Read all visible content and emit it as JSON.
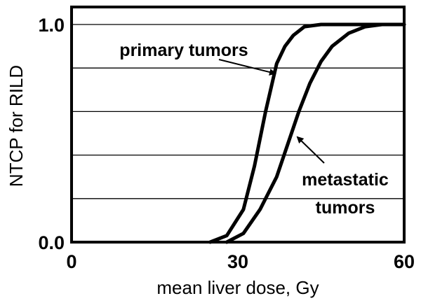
{
  "chart_data": {
    "type": "line",
    "xlabel": "mean liver dose, Gy",
    "ylabel": "NTCP for RILD",
    "xlim": [
      0,
      60
    ],
    "ylim": [
      0,
      1.0
    ],
    "x_ticks": [
      "0",
      "30",
      "60"
    ],
    "y_ticks": [
      "0.0",
      "1.0"
    ],
    "grid": "horizontal",
    "series": [
      {
        "name": "primary tumors",
        "x": [
          25,
          28,
          31,
          33,
          35,
          37,
          38.5,
          40,
          42,
          45,
          50,
          55,
          60
        ],
        "y": [
          0.0,
          0.03,
          0.15,
          0.35,
          0.6,
          0.82,
          0.9,
          0.95,
          0.99,
          1.0,
          1.0,
          1.0,
          1.0
        ]
      },
      {
        "name": "metastatic tumors",
        "x": [
          28,
          31,
          34,
          37,
          39,
          41,
          43,
          45,
          47,
          50,
          53,
          56,
          60
        ],
        "y": [
          0.0,
          0.04,
          0.15,
          0.3,
          0.45,
          0.6,
          0.73,
          0.83,
          0.9,
          0.96,
          0.99,
          1.0,
          1.0
        ]
      }
    ],
    "annotations": [
      {
        "lines": [
          "primary tumors"
        ],
        "points_to": "primary tumors"
      },
      {
        "lines": [
          "metastatic",
          "tumors"
        ],
        "points_to": "metastatic tumors"
      }
    ]
  }
}
